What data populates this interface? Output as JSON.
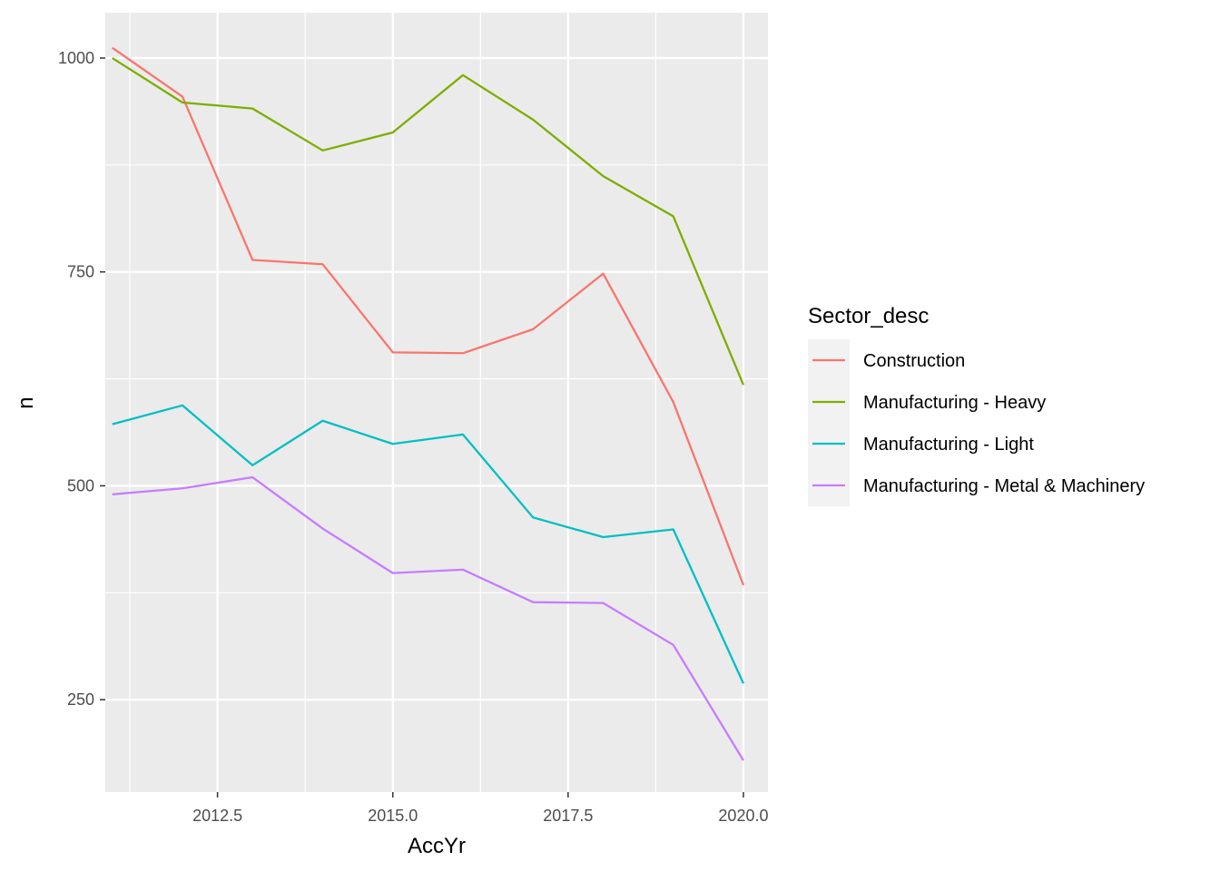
{
  "chart_data": {
    "type": "line",
    "xlabel": "AccYr",
    "ylabel": "n",
    "xlim": [
      2010.9,
      2020.35
    ],
    "ylim": [
      142,
      1053
    ],
    "x_ticks": [
      "2012.5",
      "2015.0",
      "2017.5",
      "2020.0"
    ],
    "x_tick_values": [
      2012.5,
      2015.0,
      2017.5,
      2020.0
    ],
    "x_minor_values": [
      2011.25,
      2013.75,
      2016.25,
      2018.75
    ],
    "y_ticks": [
      "250",
      "500",
      "750",
      "1000"
    ],
    "y_tick_values": [
      250,
      500,
      750,
      1000
    ],
    "y_minor_values": [
      375,
      625,
      875
    ],
    "grid": true,
    "legend": {
      "title": "Sector_desc",
      "position": "right"
    },
    "x": [
      2011,
      2012,
      2013,
      2014,
      2015,
      2016,
      2017,
      2018,
      2019,
      2020
    ],
    "series": [
      {
        "name": "Construction",
        "color": "#F8766D",
        "values": [
          1012,
          955,
          764,
          759,
          656,
          655,
          683,
          748,
          598,
          384
        ]
      },
      {
        "name": "Manufacturing - Heavy",
        "color": "#7CAE00",
        "values": [
          1000,
          948,
          941,
          892,
          913,
          980,
          928,
          862,
          815,
          618
        ]
      },
      {
        "name": "Manufacturing - Light",
        "color": "#00BFC4",
        "values": [
          572,
          594,
          524,
          576,
          549,
          560,
          463,
          440,
          449,
          269
        ]
      },
      {
        "name": "Manufacturing - Metal & Machinery",
        "color": "#C77CFF",
        "values": [
          490,
          497,
          510,
          450,
          398,
          402,
          364,
          363,
          314,
          179
        ]
      }
    ]
  }
}
